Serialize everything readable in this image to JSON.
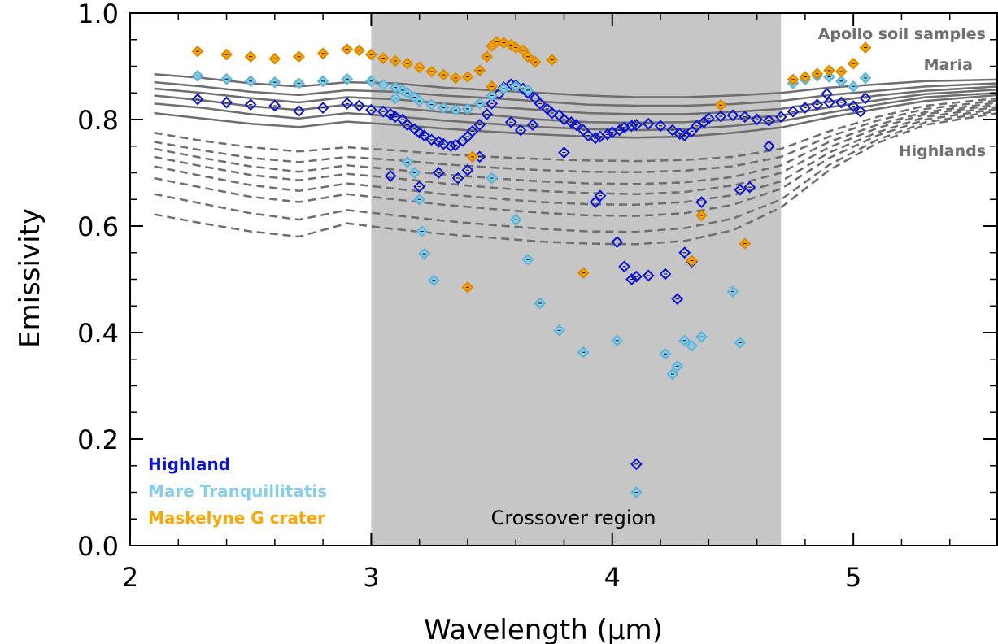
{
  "chart_data": {
    "type": "scatter",
    "xlabel": "Wavelength (μm)",
    "ylabel": "Emissivity",
    "xlim": [
      2.0,
      5.6
    ],
    "ylim": [
      0.0,
      1.0
    ],
    "x_ticks": [
      "2",
      "3",
      "4",
      "5"
    ],
    "y_ticks": [
      "0.0",
      "0.2",
      "0.4",
      "0.6",
      "0.8",
      "1.0"
    ],
    "shaded_region": {
      "label": "Crossover region",
      "x_range": [
        3.0,
        4.7
      ],
      "color": "#c6c6c6"
    },
    "reference_labels": {
      "apollo": "Apollo soil samples",
      "maria": "Maria",
      "highlands": "Highlands"
    },
    "reference_spectra": {
      "color": "#6e6e6e",
      "x": [
        2.1,
        2.3,
        2.5,
        2.7,
        2.9,
        3.1,
        3.3,
        3.5,
        3.7,
        3.9,
        4.1,
        4.3,
        4.5,
        4.7,
        4.9,
        5.1,
        5.3,
        5.6
      ],
      "maria": [
        [
          0.885,
          0.878,
          0.868,
          0.862,
          0.87,
          0.868,
          0.86,
          0.855,
          0.85,
          0.845,
          0.842,
          0.842,
          0.845,
          0.85,
          0.86,
          0.866,
          0.872,
          0.875
        ],
        [
          0.87,
          0.862,
          0.852,
          0.846,
          0.855,
          0.852,
          0.845,
          0.84,
          0.834,
          0.828,
          0.826,
          0.826,
          0.829,
          0.835,
          0.846,
          0.854,
          0.862,
          0.868
        ],
        [
          0.858,
          0.85,
          0.84,
          0.832,
          0.842,
          0.838,
          0.83,
          0.824,
          0.818,
          0.812,
          0.81,
          0.81,
          0.814,
          0.82,
          0.834,
          0.845,
          0.854,
          0.862
        ],
        [
          0.845,
          0.836,
          0.825,
          0.818,
          0.828,
          0.822,
          0.814,
          0.808,
          0.8,
          0.795,
          0.794,
          0.795,
          0.8,
          0.808,
          0.823,
          0.836,
          0.848,
          0.856
        ],
        [
          0.83,
          0.822,
          0.81,
          0.802,
          0.812,
          0.806,
          0.798,
          0.792,
          0.786,
          0.782,
          0.78,
          0.782,
          0.788,
          0.797,
          0.813,
          0.828,
          0.842,
          0.85
        ],
        [
          0.812,
          0.802,
          0.792,
          0.786,
          0.796,
          0.79,
          0.783,
          0.777,
          0.772,
          0.768,
          0.766,
          0.768,
          0.775,
          0.785,
          0.804,
          0.82,
          0.835,
          0.846
        ]
      ],
      "highlands": [
        [
          0.775,
          0.76,
          0.748,
          0.74,
          0.748,
          0.742,
          0.735,
          0.73,
          0.726,
          0.723,
          0.722,
          0.724,
          0.73,
          0.745,
          0.778,
          0.805,
          0.826,
          0.84
        ],
        [
          0.758,
          0.742,
          0.728,
          0.72,
          0.73,
          0.724,
          0.716,
          0.71,
          0.705,
          0.702,
          0.701,
          0.704,
          0.712,
          0.73,
          0.768,
          0.798,
          0.82,
          0.836
        ],
        [
          0.745,
          0.728,
          0.712,
          0.702,
          0.714,
          0.706,
          0.697,
          0.69,
          0.684,
          0.68,
          0.679,
          0.682,
          0.692,
          0.714,
          0.758,
          0.79,
          0.814,
          0.832
        ],
        [
          0.73,
          0.712,
          0.696,
          0.686,
          0.698,
          0.69,
          0.68,
          0.672,
          0.666,
          0.662,
          0.66,
          0.664,
          0.676,
          0.7,
          0.748,
          0.784,
          0.81,
          0.828
        ],
        [
          0.712,
          0.694,
          0.677,
          0.666,
          0.68,
          0.67,
          0.66,
          0.652,
          0.645,
          0.641,
          0.64,
          0.645,
          0.658,
          0.684,
          0.738,
          0.776,
          0.805,
          0.824
        ],
        [
          0.69,
          0.672,
          0.655,
          0.645,
          0.66,
          0.65,
          0.64,
          0.632,
          0.625,
          0.62,
          0.619,
          0.624,
          0.64,
          0.67,
          0.728,
          0.77,
          0.8,
          0.82
        ],
        [
          0.66,
          0.642,
          0.624,
          0.612,
          0.63,
          0.62,
          0.61,
          0.602,
          0.595,
          0.59,
          0.589,
          0.596,
          0.614,
          0.65,
          0.715,
          0.762,
          0.795,
          0.816
        ],
        [
          0.622,
          0.605,
          0.59,
          0.58,
          0.605,
          0.594,
          0.585,
          0.578,
          0.571,
          0.567,
          0.566,
          0.572,
          0.592,
          0.635,
          0.705,
          0.756,
          0.79,
          0.812
        ]
      ]
    },
    "series": [
      {
        "name": "Highland",
        "color": "#0b14d8",
        "x": [
          2.28,
          2.4,
          2.5,
          2.6,
          2.7,
          2.8,
          2.9,
          2.95,
          3.0,
          3.05,
          3.08,
          3.1,
          3.13,
          3.15,
          3.18,
          3.2,
          3.22,
          3.25,
          3.28,
          3.3,
          3.33,
          3.35,
          3.38,
          3.4,
          3.42,
          3.45,
          3.48,
          3.5,
          3.53,
          3.55,
          3.58,
          3.6,
          3.63,
          3.65,
          3.68,
          3.7,
          3.73,
          3.75,
          3.78,
          3.8,
          3.83,
          3.85,
          3.88,
          3.9,
          3.93,
          3.95,
          3.98,
          4.0,
          4.03,
          4.05,
          4.08,
          4.1,
          4.15,
          4.2,
          4.25,
          4.28,
          4.3,
          4.33,
          4.35,
          4.38,
          4.4,
          4.45,
          4.5,
          4.55,
          4.6,
          4.65,
          4.7,
          4.75,
          4.8,
          4.85,
          4.9,
          4.95,
          5.0,
          5.03,
          3.08,
          3.2,
          3.28,
          3.36,
          3.4,
          3.45,
          3.58,
          3.62,
          3.67,
          3.8,
          3.93,
          3.95,
          4.02,
          4.05,
          4.08,
          4.1,
          4.15,
          4.22,
          4.27,
          4.3,
          4.33,
          4.37,
          4.53,
          4.57,
          4.65,
          4.89,
          5.05,
          4.1
        ],
        "y": [
          0.838,
          0.832,
          0.828,
          0.826,
          0.816,
          0.822,
          0.83,
          0.826,
          0.818,
          0.815,
          0.81,
          0.805,
          0.8,
          0.79,
          0.782,
          0.775,
          0.77,
          0.762,
          0.758,
          0.754,
          0.75,
          0.752,
          0.76,
          0.768,
          0.778,
          0.79,
          0.81,
          0.83,
          0.848,
          0.86,
          0.866,
          0.864,
          0.858,
          0.85,
          0.84,
          0.83,
          0.82,
          0.812,
          0.808,
          0.8,
          0.795,
          0.79,
          0.78,
          0.77,
          0.765,
          0.768,
          0.772,
          0.776,
          0.78,
          0.785,
          0.788,
          0.79,
          0.792,
          0.788,
          0.78,
          0.773,
          0.77,
          0.778,
          0.788,
          0.795,
          0.802,
          0.806,
          0.808,
          0.805,
          0.8,
          0.798,
          0.805,
          0.815,
          0.822,
          0.828,
          0.832,
          0.832,
          0.825,
          0.815,
          0.694,
          0.674,
          0.7,
          0.69,
          0.705,
          0.73,
          0.795,
          0.78,
          0.79,
          0.738,
          0.645,
          0.657,
          0.57,
          0.524,
          0.5,
          0.505,
          0.507,
          0.51,
          0.463,
          0.55,
          0.533,
          0.645,
          0.668,
          0.673,
          0.75,
          0.848,
          0.84,
          0.153
        ]
      },
      {
        "name": "Mare Tranquillitatis",
        "color": "#87ceeb",
        "x": [
          2.28,
          2.4,
          2.5,
          2.6,
          2.7,
          2.8,
          2.9,
          3.0,
          3.05,
          3.1,
          3.13,
          3.15,
          3.18,
          3.2,
          3.25,
          3.3,
          3.35,
          3.4,
          3.45,
          3.5,
          3.55,
          3.6,
          3.65,
          4.75,
          4.8,
          4.85,
          4.9,
          4.95,
          5.0,
          5.05,
          3.1,
          3.15,
          3.18,
          3.2,
          3.21,
          3.22,
          3.26,
          3.5,
          3.6,
          3.65,
          3.7,
          3.78,
          3.88,
          4.02,
          4.1,
          4.22,
          4.25,
          4.27,
          4.3,
          4.33,
          4.37,
          4.5,
          4.53
        ],
        "y": [
          0.882,
          0.876,
          0.872,
          0.87,
          0.868,
          0.872,
          0.876,
          0.872,
          0.865,
          0.86,
          0.855,
          0.85,
          0.842,
          0.835,
          0.828,
          0.822,
          0.818,
          0.82,
          0.83,
          0.845,
          0.858,
          0.862,
          0.855,
          0.868,
          0.875,
          0.882,
          0.88,
          0.872,
          0.862,
          0.878,
          0.84,
          0.72,
          0.7,
          0.65,
          0.59,
          0.548,
          0.498,
          0.69,
          0.612,
          0.537,
          0.455,
          0.404,
          0.363,
          0.385,
          0.1,
          0.36,
          0.322,
          0.337,
          0.385,
          0.375,
          0.392,
          0.477,
          0.381
        ]
      },
      {
        "name": "Maskelyne G crater",
        "color": "#ffa500",
        "x": [
          2.28,
          2.4,
          2.5,
          2.6,
          2.7,
          2.8,
          2.9,
          2.95,
          3.0,
          3.05,
          3.1,
          3.15,
          3.2,
          3.25,
          3.3,
          3.35,
          3.4,
          3.45,
          3.48,
          3.5,
          3.52,
          3.55,
          3.58,
          3.6,
          3.63,
          3.65,
          3.68,
          3.75,
          4.75,
          4.8,
          4.85,
          4.9,
          4.95,
          5.0,
          5.05,
          3.4,
          3.42,
          3.5,
          3.88,
          4.33,
          4.37,
          4.45,
          4.55
        ],
        "y": [
          0.928,
          0.922,
          0.918,
          0.914,
          0.918,
          0.924,
          0.932,
          0.93,
          0.922,
          0.915,
          0.91,
          0.905,
          0.898,
          0.89,
          0.884,
          0.878,
          0.88,
          0.892,
          0.918,
          0.938,
          0.946,
          0.944,
          0.94,
          0.935,
          0.93,
          0.918,
          0.908,
          0.912,
          0.875,
          0.88,
          0.886,
          0.892,
          0.89,
          0.905,
          0.935,
          0.485,
          0.73,
          0.862,
          0.512,
          0.535,
          0.62,
          0.827,
          0.567
        ]
      }
    ]
  }
}
